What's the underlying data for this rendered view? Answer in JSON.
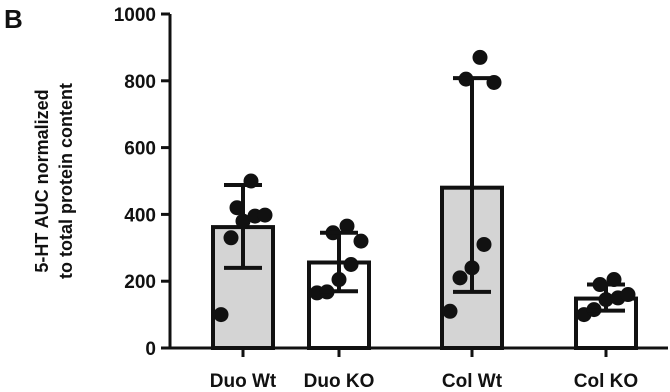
{
  "panel_label": "B",
  "chart_data": {
    "type": "bar",
    "title": "",
    "xlabel": "",
    "ylabel": [
      "5-HT AUC normalized",
      "to total protein content"
    ],
    "ylim": [
      0,
      1000
    ],
    "yticks": [
      0,
      200,
      400,
      600,
      800,
      1000
    ],
    "categories": [
      "Duo Wt",
      "Duo KO",
      "Col Wt",
      "Col KO"
    ],
    "values": [
      362,
      256,
      480,
      148
    ],
    "error": [
      {
        "low": 240,
        "high": 488
      },
      {
        "low": 170,
        "high": 345
      },
      {
        "low": 168,
        "high": 808
      },
      {
        "low": 112,
        "high": 190
      }
    ],
    "bar_fill": [
      "#d4d4d4",
      "#ffffff",
      "#d4d4d4",
      "#ffffff"
    ],
    "points": [
      [
        100,
        330,
        380,
        395,
        398,
        420,
        500
      ],
      [
        165,
        168,
        205,
        250,
        320,
        345,
        365
      ],
      [
        110,
        210,
        240,
        310,
        795,
        805,
        870
      ],
      [
        100,
        115,
        145,
        150,
        160,
        190,
        205
      ]
    ],
    "grid": false,
    "legend": "none"
  }
}
